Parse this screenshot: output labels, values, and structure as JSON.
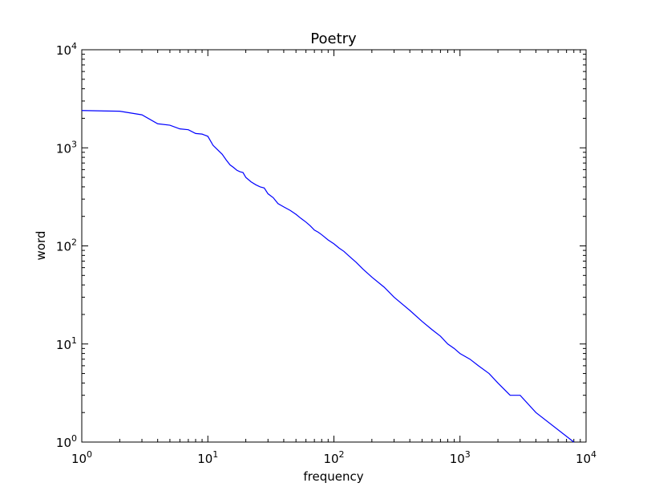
{
  "chart_data": {
    "type": "line",
    "title": "Poetry",
    "xlabel": "frequency",
    "ylabel": "word",
    "x_scale": "log",
    "y_scale": "log",
    "xlim": [
      1,
      10000
    ],
    "ylim": [
      1,
      10000
    ],
    "grid": false,
    "line_color": "#0000ff",
    "x_ticks": [
      {
        "base": "10",
        "exp": "0"
      },
      {
        "base": "10",
        "exp": "1"
      },
      {
        "base": "10",
        "exp": "2"
      },
      {
        "base": "10",
        "exp": "3"
      },
      {
        "base": "10",
        "exp": "4"
      }
    ],
    "y_ticks": [
      {
        "base": "10",
        "exp": "0"
      },
      {
        "base": "10",
        "exp": "1"
      },
      {
        "base": "10",
        "exp": "2"
      },
      {
        "base": "10",
        "exp": "3"
      },
      {
        "base": "10",
        "exp": "4"
      }
    ],
    "series": [
      {
        "x": [
          1,
          2,
          3,
          4,
          5,
          6,
          7,
          8,
          9,
          10,
          11,
          12,
          13,
          14,
          15,
          16,
          17,
          18,
          19,
          20,
          22,
          24,
          26,
          28,
          30,
          33,
          36,
          40,
          45,
          50,
          55,
          60,
          65,
          70,
          75,
          80,
          90,
          100,
          110,
          120,
          130,
          150,
          170,
          200,
          250,
          300,
          400,
          500,
          600,
          700,
          800,
          900,
          1000,
          1200,
          1400,
          1700,
          2000,
          2500,
          3000,
          4000,
          8000
        ],
        "y": [
          2400,
          2360,
          2170,
          1760,
          1700,
          1560,
          1530,
          1400,
          1380,
          1310,
          1060,
          950,
          860,
          750,
          670,
          630,
          590,
          570,
          560,
          500,
          450,
          420,
          400,
          390,
          340,
          310,
          270,
          250,
          230,
          210,
          190,
          175,
          160,
          145,
          138,
          130,
          115,
          105,
          95,
          88,
          80,
          68,
          58,
          48,
          38,
          30,
          22,
          17,
          14,
          12,
          10,
          9,
          8,
          7,
          6,
          5,
          4,
          3,
          3,
          2,
          1
        ]
      }
    ]
  }
}
